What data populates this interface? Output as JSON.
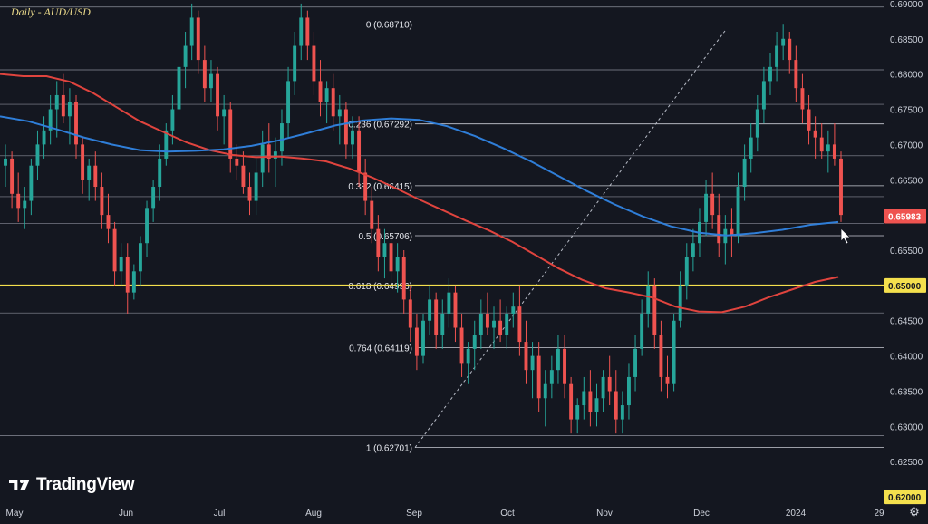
{
  "chart_data": {
    "type": "candlestick",
    "title": "Daily - AUD/USD",
    "colors": {
      "background": "#141720",
      "up": "#26a69a",
      "down": "#ef5350",
      "ma_short": "#2f7ed8",
      "ma_long": "#e0443e",
      "key_level": "#f4e04d",
      "price_label": "#ef5350",
      "fib_line": "#c9ccd4"
    },
    "y_axis": {
      "ylim": [
        0.6195,
        0.6905
      ],
      "ticks": [
        "0.69000",
        "0.68500",
        "0.68000",
        "0.67500",
        "0.67000",
        "0.66500",
        "0.66000",
        "0.65500",
        "0.65000",
        "0.64500",
        "0.64000",
        "0.63500",
        "0.63000",
        "0.62500",
        "0.62000"
      ]
    },
    "x_axis": {
      "labels": [
        "May",
        "Jun",
        "Jul",
        "Aug",
        "Sep",
        "Oct",
        "Nov",
        "Dec",
        "2024",
        "29"
      ]
    },
    "current_price": "0.65983",
    "key_level": "0.65000",
    "bottom_label": "0.62000",
    "fib_levels": [
      {
        "label": "0 (0.68710)",
        "value": 0.6871
      },
      {
        "label": "0.236 (0.67292)",
        "value": 0.67292
      },
      {
        "label": "0.382 (0.66415)",
        "value": 0.66415
      },
      {
        "label": "0.5 (0.65706)",
        "value": 0.65706
      },
      {
        "label": "0.618 (0.64996)",
        "value": 0.64996
      },
      {
        "label": "0.764 (0.64119)",
        "value": 0.64119
      },
      {
        "label": "1 (0.62701)",
        "value": 0.62701
      }
    ],
    "horizontal_levels": [
      0.6895,
      0.6806,
      0.6757,
      0.6684,
      0.6626,
      0.6588,
      0.6461,
      0.6287
    ],
    "candles_ohlc": [
      [
        0.667,
        0.67,
        0.664,
        0.668
      ],
      [
        0.668,
        0.669,
        0.661,
        0.663
      ],
      [
        0.663,
        0.666,
        0.659,
        0.661
      ],
      [
        0.661,
        0.664,
        0.658,
        0.662
      ],
      [
        0.662,
        0.668,
        0.66,
        0.667
      ],
      [
        0.667,
        0.672,
        0.665,
        0.67
      ],
      [
        0.67,
        0.674,
        0.668,
        0.672
      ],
      [
        0.672,
        0.677,
        0.67,
        0.675
      ],
      [
        0.675,
        0.679,
        0.671,
        0.677
      ],
      [
        0.677,
        0.68,
        0.673,
        0.674
      ],
      [
        0.674,
        0.678,
        0.67,
        0.676
      ],
      [
        0.676,
        0.677,
        0.668,
        0.67
      ],
      [
        0.67,
        0.671,
        0.663,
        0.665
      ],
      [
        0.665,
        0.668,
        0.662,
        0.667
      ],
      [
        0.667,
        0.669,
        0.662,
        0.664
      ],
      [
        0.664,
        0.666,
        0.658,
        0.66
      ],
      [
        0.66,
        0.663,
        0.656,
        0.658
      ],
      [
        0.658,
        0.659,
        0.65,
        0.652
      ],
      [
        0.652,
        0.656,
        0.65,
        0.654
      ],
      [
        0.654,
        0.656,
        0.646,
        0.649
      ],
      [
        0.649,
        0.653,
        0.648,
        0.652
      ],
      [
        0.652,
        0.657,
        0.65,
        0.656
      ],
      [
        0.656,
        0.662,
        0.654,
        0.661
      ],
      [
        0.661,
        0.665,
        0.659,
        0.664
      ],
      [
        0.664,
        0.67,
        0.662,
        0.668
      ],
      [
        0.668,
        0.673,
        0.667,
        0.672
      ],
      [
        0.672,
        0.677,
        0.67,
        0.675
      ],
      [
        0.675,
        0.682,
        0.674,
        0.681
      ],
      [
        0.681,
        0.686,
        0.678,
        0.684
      ],
      [
        0.684,
        0.69,
        0.682,
        0.688
      ],
      [
        0.688,
        0.689,
        0.68,
        0.682
      ],
      [
        0.682,
        0.684,
        0.676,
        0.678
      ],
      [
        0.678,
        0.682,
        0.676,
        0.68
      ],
      [
        0.68,
        0.681,
        0.672,
        0.674
      ],
      [
        0.674,
        0.677,
        0.67,
        0.675
      ],
      [
        0.675,
        0.676,
        0.666,
        0.668
      ],
      [
        0.668,
        0.67,
        0.665,
        0.667
      ],
      [
        0.667,
        0.669,
        0.663,
        0.664
      ],
      [
        0.664,
        0.666,
        0.66,
        0.662
      ],
      [
        0.662,
        0.668,
        0.66,
        0.666
      ],
      [
        0.666,
        0.672,
        0.664,
        0.67
      ],
      [
        0.67,
        0.673,
        0.666,
        0.668
      ],
      [
        0.668,
        0.671,
        0.664,
        0.669
      ],
      [
        0.669,
        0.675,
        0.667,
        0.673
      ],
      [
        0.673,
        0.681,
        0.671,
        0.679
      ],
      [
        0.679,
        0.686,
        0.677,
        0.684
      ],
      [
        0.684,
        0.69,
        0.682,
        0.688
      ],
      [
        0.688,
        0.689,
        0.682,
        0.684
      ],
      [
        0.684,
        0.686,
        0.677,
        0.679
      ],
      [
        0.679,
        0.682,
        0.674,
        0.676
      ],
      [
        0.676,
        0.679,
        0.673,
        0.678
      ],
      [
        0.678,
        0.68,
        0.672,
        0.674
      ],
      [
        0.674,
        0.677,
        0.67,
        0.675
      ],
      [
        0.675,
        0.676,
        0.668,
        0.67
      ],
      [
        0.67,
        0.674,
        0.668,
        0.672
      ],
      [
        0.672,
        0.674,
        0.664,
        0.666
      ],
      [
        0.666,
        0.668,
        0.66,
        0.662
      ],
      [
        0.662,
        0.664,
        0.656,
        0.658
      ],
      [
        0.658,
        0.66,
        0.652,
        0.654
      ],
      [
        0.654,
        0.658,
        0.651,
        0.656
      ],
      [
        0.656,
        0.657,
        0.65,
        0.652
      ],
      [
        0.652,
        0.656,
        0.649,
        0.654
      ],
      [
        0.654,
        0.655,
        0.646,
        0.648
      ],
      [
        0.648,
        0.65,
        0.642,
        0.644
      ],
      [
        0.644,
        0.646,
        0.638,
        0.64
      ],
      [
        0.64,
        0.646,
        0.639,
        0.645
      ],
      [
        0.645,
        0.65,
        0.643,
        0.648
      ],
      [
        0.648,
        0.649,
        0.641,
        0.643
      ],
      [
        0.643,
        0.648,
        0.641,
        0.646
      ],
      [
        0.646,
        0.651,
        0.644,
        0.649
      ],
      [
        0.649,
        0.65,
        0.642,
        0.644
      ],
      [
        0.644,
        0.646,
        0.637,
        0.639
      ],
      [
        0.639,
        0.642,
        0.636,
        0.641
      ],
      [
        0.641,
        0.645,
        0.638,
        0.643
      ],
      [
        0.643,
        0.648,
        0.641,
        0.646
      ],
      [
        0.646,
        0.649,
        0.643,
        0.644
      ],
      [
        0.644,
        0.647,
        0.641,
        0.645
      ],
      [
        0.645,
        0.648,
        0.642,
        0.643
      ],
      [
        0.643,
        0.647,
        0.641,
        0.646
      ],
      [
        0.646,
        0.649,
        0.644,
        0.647
      ],
      [
        0.647,
        0.65,
        0.64,
        0.642
      ],
      [
        0.642,
        0.645,
        0.636,
        0.638
      ],
      [
        0.638,
        0.642,
        0.634,
        0.64
      ],
      [
        0.64,
        0.642,
        0.632,
        0.634
      ],
      [
        0.634,
        0.638,
        0.63,
        0.636
      ],
      [
        0.636,
        0.64,
        0.634,
        0.638
      ],
      [
        0.638,
        0.643,
        0.636,
        0.641
      ],
      [
        0.641,
        0.643,
        0.634,
        0.636
      ],
      [
        0.636,
        0.637,
        0.629,
        0.631
      ],
      [
        0.631,
        0.634,
        0.629,
        0.633
      ],
      [
        0.633,
        0.637,
        0.631,
        0.635
      ],
      [
        0.635,
        0.638,
        0.63,
        0.632
      ],
      [
        0.632,
        0.636,
        0.63,
        0.634
      ],
      [
        0.634,
        0.638,
        0.632,
        0.637
      ],
      [
        0.637,
        0.64,
        0.633,
        0.635
      ],
      [
        0.635,
        0.638,
        0.629,
        0.631
      ],
      [
        0.631,
        0.635,
        0.629,
        0.633
      ],
      [
        0.633,
        0.639,
        0.631,
        0.637
      ],
      [
        0.637,
        0.643,
        0.635,
        0.641
      ],
      [
        0.641,
        0.648,
        0.64,
        0.646
      ],
      [
        0.646,
        0.652,
        0.644,
        0.65
      ],
      [
        0.65,
        0.651,
        0.641,
        0.643
      ],
      [
        0.643,
        0.645,
        0.635,
        0.637
      ],
      [
        0.637,
        0.64,
        0.634,
        0.636
      ],
      [
        0.636,
        0.646,
        0.635,
        0.645
      ],
      [
        0.645,
        0.652,
        0.644,
        0.65
      ],
      [
        0.65,
        0.656,
        0.648,
        0.654
      ],
      [
        0.654,
        0.658,
        0.652,
        0.656
      ],
      [
        0.656,
        0.661,
        0.654,
        0.659
      ],
      [
        0.659,
        0.665,
        0.657,
        0.663
      ],
      [
        0.663,
        0.666,
        0.658,
        0.66
      ],
      [
        0.66,
        0.663,
        0.654,
        0.656
      ],
      [
        0.656,
        0.66,
        0.653,
        0.658
      ],
      [
        0.658,
        0.661,
        0.654,
        0.657
      ],
      [
        0.657,
        0.666,
        0.656,
        0.664
      ],
      [
        0.664,
        0.67,
        0.662,
        0.668
      ],
      [
        0.668,
        0.673,
        0.666,
        0.671
      ],
      [
        0.671,
        0.677,
        0.669,
        0.675
      ],
      [
        0.675,
        0.681,
        0.673,
        0.679
      ],
      [
        0.679,
        0.683,
        0.677,
        0.681
      ],
      [
        0.681,
        0.686,
        0.679,
        0.684
      ],
      [
        0.684,
        0.687,
        0.682,
        0.685
      ],
      [
        0.685,
        0.686,
        0.68,
        0.682
      ],
      [
        0.682,
        0.684,
        0.676,
        0.678
      ],
      [
        0.678,
        0.68,
        0.673,
        0.675
      ],
      [
        0.675,
        0.677,
        0.67,
        0.672
      ],
      [
        0.672,
        0.674,
        0.668,
        0.671
      ],
      [
        0.671,
        0.673,
        0.668,
        0.669
      ],
      [
        0.669,
        0.672,
        0.666,
        0.67
      ],
      [
        0.67,
        0.673,
        0.667,
        0.668
      ],
      [
        0.668,
        0.669,
        0.659,
        0.66
      ]
    ],
    "ma_short_values": [
      0.674,
      0.6733,
      0.6722,
      0.671,
      0.67,
      0.6692,
      0.669,
      0.6691,
      0.6693,
      0.6698,
      0.6706,
      0.6716,
      0.6727,
      0.6734,
      0.6737,
      0.6735,
      0.6726,
      0.6712,
      0.6695,
      0.6676,
      0.6655,
      0.6634,
      0.6615,
      0.6598,
      0.6584,
      0.6575,
      0.6571,
      0.6574,
      0.6579,
      0.6586,
      0.659
    ],
    "ma_long_values": [
      0.68,
      0.6797,
      0.6797,
      0.6789,
      0.6773,
      0.6753,
      0.6733,
      0.6718,
      0.6703,
      0.6692,
      0.6685,
      0.6682,
      0.6683,
      0.668,
      0.6676,
      0.6666,
      0.6653,
      0.6638,
      0.6622,
      0.6607,
      0.6592,
      0.6578,
      0.6562,
      0.6543,
      0.6524,
      0.6508,
      0.6496,
      0.649,
      0.6483,
      0.647,
      0.6463,
      0.6462,
      0.647,
      0.6483,
      0.6494,
      0.6505,
      0.6512
    ]
  }
}
